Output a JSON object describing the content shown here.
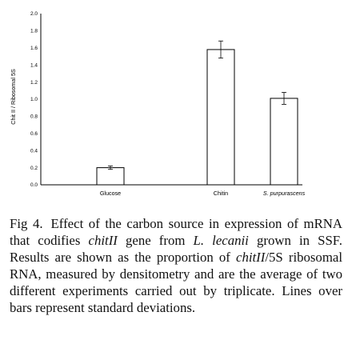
{
  "chart_data": {
    "type": "bar",
    "categories": [
      "Glucose",
      "Chitin",
      "S. purpurascens"
    ],
    "series": [
      {
        "values": [
          0.2,
          1.58,
          1.01
        ],
        "errors": [
          0.02,
          0.1,
          0.07
        ]
      }
    ],
    "ylabel": "Chit II / Ribosomal 5S",
    "ylim": [
      0,
      2.0
    ],
    "yticks": [
      "0.0",
      "0.2",
      "0.4",
      "0.6",
      "0.8",
      "1.0",
      "1.2",
      "1.4",
      "1.6",
      "1.8",
      "2.0"
    ],
    "bar_fill": "#ffffff",
    "bar_stroke": "#000000",
    "grid": false
  },
  "caption": {
    "fig_no": "Fig 4.",
    "parts": [
      {
        "t": "Effect of the carbon source in expression of mRNA that codifies ",
        "i": false
      },
      {
        "t": "chitII",
        "i": true
      },
      {
        "t": " gene from ",
        "i": false
      },
      {
        "t": "L. lecanii",
        "i": true
      },
      {
        "t": " grown in SSF. Results are shown as the proportion of ",
        "i": false
      },
      {
        "t": "chitII",
        "i": true
      },
      {
        "t": "/5S ribosomal RNA, measured by densitometry and are the average of two different experiments carried out by triplicate. Lines over bars represent standard deviations.",
        "i": false
      }
    ]
  }
}
